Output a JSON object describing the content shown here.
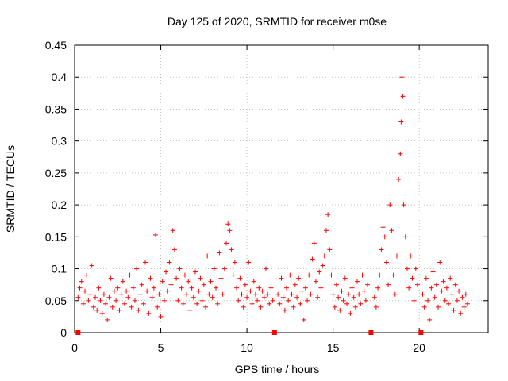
{
  "chart_data": {
    "type": "scatter",
    "title": "Day 125 of 2020, SRMTID for receiver m0se",
    "xlabel": "GPS time / hours",
    "ylabel": "SRMTID / TECUs",
    "xlim": [
      0,
      24
    ],
    "ylim": [
      0,
      0.45
    ],
    "xticks": [
      0,
      5,
      10,
      15,
      20
    ],
    "xtick_labels": [
      "0",
      "5",
      "10",
      "15",
      "20"
    ],
    "yticks": [
      0,
      0.05,
      0.1,
      0.15,
      0.2,
      0.25,
      0.3,
      0.35,
      0.4,
      0.45
    ],
    "ytick_labels": [
      "0",
      "0.05",
      "0.1",
      "0.15",
      "0.2",
      "0.25",
      "0.3",
      "0.35",
      "0.4",
      "0.45"
    ],
    "grid": true,
    "marker": "+",
    "color": "#ff0000",
    "series": [
      {
        "name": "SRMTID",
        "points": [
          [
            0.2,
            0.055
          ],
          [
            0.3,
            0.07
          ],
          [
            0.4,
            0.08
          ],
          [
            0.5,
            0.045
          ],
          [
            0.6,
            0.065
          ],
          [
            0.7,
            0.09
          ],
          [
            0.8,
            0.05
          ],
          [
            0.9,
            0.06
          ],
          [
            1.0,
            0.105
          ],
          [
            1.1,
            0.04
          ],
          [
            1.2,
            0.055
          ],
          [
            1.3,
            0.035
          ],
          [
            1.4,
            0.07
          ],
          [
            1.5,
            0.05
          ],
          [
            1.6,
            0.03
          ],
          [
            1.7,
            0.06
          ],
          [
            1.8,
            0.045
          ],
          [
            1.9,
            0.02
          ],
          [
            2.0,
            0.055
          ],
          [
            2.1,
            0.085
          ],
          [
            2.2,
            0.04
          ],
          [
            2.3,
            0.065
          ],
          [
            2.4,
            0.05
          ],
          [
            2.5,
            0.07
          ],
          [
            2.6,
            0.035
          ],
          [
            2.7,
            0.06
          ],
          [
            2.8,
            0.08
          ],
          [
            2.9,
            0.045
          ],
          [
            3.0,
            0.065
          ],
          [
            3.1,
            0.055
          ],
          [
            3.2,
            0.09
          ],
          [
            3.3,
            0.04
          ],
          [
            3.4,
            0.07
          ],
          [
            3.5,
            0.05
          ],
          [
            3.6,
            0.1
          ],
          [
            3.7,
            0.035
          ],
          [
            3.8,
            0.06
          ],
          [
            3.9,
            0.075
          ],
          [
            4.0,
            0.045
          ],
          [
            4.1,
            0.11
          ],
          [
            4.2,
            0.065
          ],
          [
            4.3,
            0.03
          ],
          [
            4.4,
            0.085
          ],
          [
            4.5,
            0.055
          ],
          [
            4.6,
            0.07
          ],
          [
            4.7,
            0.153
          ],
          [
            4.8,
            0.04
          ],
          [
            4.9,
            0.06
          ],
          [
            5.0,
            0.025
          ],
          [
            5.1,
            0.08
          ],
          [
            5.2,
            0.05
          ],
          [
            5.3,
            0.095
          ],
          [
            5.4,
            0.065
          ],
          [
            5.5,
            0.11
          ],
          [
            5.6,
            0.075
          ],
          [
            5.7,
            0.16
          ],
          [
            5.8,
            0.13
          ],
          [
            5.9,
            0.085
          ],
          [
            6.0,
            0.05
          ],
          [
            6.1,
            0.1
          ],
          [
            6.2,
            0.07
          ],
          [
            6.3,
            0.045
          ],
          [
            6.4,
            0.09
          ],
          [
            6.5,
            0.06
          ],
          [
            6.6,
            0.08
          ],
          [
            6.7,
            0.035
          ],
          [
            6.8,
            0.07
          ],
          [
            6.9,
            0.055
          ],
          [
            7.0,
            0.095
          ],
          [
            7.1,
            0.045
          ],
          [
            7.2,
            0.065
          ],
          [
            7.3,
            0.085
          ],
          [
            7.4,
            0.05
          ],
          [
            7.5,
            0.075
          ],
          [
            7.6,
            0.04
          ],
          [
            7.7,
            0.12
          ],
          [
            7.8,
            0.06
          ],
          [
            7.9,
            0.08
          ],
          [
            8.0,
            0.055
          ],
          [
            8.1,
            0.1
          ],
          [
            8.2,
            0.07
          ],
          [
            8.3,
            0.045
          ],
          [
            8.4,
            0.125
          ],
          [
            8.5,
            0.085
          ],
          [
            8.6,
            0.06
          ],
          [
            8.7,
            0.1
          ],
          [
            8.8,
            0.14
          ],
          [
            8.9,
            0.17
          ],
          [
            9.0,
            0.16
          ],
          [
            9.1,
            0.13
          ],
          [
            9.2,
            0.09
          ],
          [
            9.3,
            0.11
          ],
          [
            9.4,
            0.07
          ],
          [
            9.5,
            0.05
          ],
          [
            9.6,
            0.085
          ],
          [
            9.7,
            0.06
          ],
          [
            9.8,
            0.04
          ],
          [
            9.9,
            0.075
          ],
          [
            10.0,
            0.055
          ],
          [
            10.1,
            0.11
          ],
          [
            10.2,
            0.065
          ],
          [
            10.3,
            0.045
          ],
          [
            10.4,
            0.08
          ],
          [
            10.5,
            0.06
          ],
          [
            10.6,
            0.05
          ],
          [
            10.7,
            0.07
          ],
          [
            10.8,
            0.04
          ],
          [
            10.9,
            0.065
          ],
          [
            11.0,
            0.055
          ],
          [
            11.1,
            0.1
          ],
          [
            11.2,
            0.06
          ],
          [
            11.3,
            0.045
          ],
          [
            11.4,
            0.07
          ],
          [
            11.5,
            0.05
          ],
          [
            11.8,
            0.06
          ],
          [
            11.9,
            0.045
          ],
          [
            12.0,
            0.085
          ],
          [
            12.1,
            0.055
          ],
          [
            12.2,
            0.035
          ],
          [
            12.3,
            0.07
          ],
          [
            12.4,
            0.05
          ],
          [
            12.5,
            0.09
          ],
          [
            12.6,
            0.06
          ],
          [
            12.7,
            0.04
          ],
          [
            12.8,
            0.075
          ],
          [
            12.9,
            0.055
          ],
          [
            13.0,
            0.085
          ],
          [
            13.1,
            0.045
          ],
          [
            13.2,
            0.065
          ],
          [
            13.3,
            0.02
          ],
          [
            13.4,
            0.07
          ],
          [
            13.5,
            0.05
          ],
          [
            13.6,
            0.09
          ],
          [
            13.7,
            0.06
          ],
          [
            13.8,
            0.115
          ],
          [
            13.9,
            0.14
          ],
          [
            14.0,
            0.08
          ],
          [
            14.1,
            0.055
          ],
          [
            14.2,
            0.095
          ],
          [
            14.3,
            0.07
          ],
          [
            14.4,
            0.105
          ],
          [
            14.5,
            0.12
          ],
          [
            14.6,
            0.16
          ],
          [
            14.7,
            0.185
          ],
          [
            14.8,
            0.13
          ],
          [
            14.9,
            0.09
          ],
          [
            15.0,
            0.06
          ],
          [
            15.1,
            0.04
          ],
          [
            15.2,
            0.075
          ],
          [
            15.3,
            0.055
          ],
          [
            15.4,
            0.035
          ],
          [
            15.5,
            0.065
          ],
          [
            15.6,
            0.05
          ],
          [
            15.7,
            0.085
          ],
          [
            15.8,
            0.045
          ],
          [
            15.9,
            0.06
          ],
          [
            16.0,
            0.03
          ],
          [
            16.1,
            0.07
          ],
          [
            16.2,
            0.055
          ],
          [
            16.3,
            0.04
          ],
          [
            16.4,
            0.08
          ],
          [
            16.5,
            0.06
          ],
          [
            16.6,
            0.045
          ],
          [
            16.7,
            0.09
          ],
          [
            16.8,
            0.065
          ],
          [
            16.9,
            0.05
          ],
          [
            17.0,
            0.075
          ],
          [
            17.4,
            0.055
          ],
          [
            17.5,
            0.04
          ],
          [
            17.6,
            0.07
          ],
          [
            17.7,
            0.09
          ],
          [
            17.8,
            0.13
          ],
          [
            17.9,
            0.165
          ],
          [
            18.0,
            0.15
          ],
          [
            18.1,
            0.11
          ],
          [
            18.2,
            0.075
          ],
          [
            18.3,
            0.2
          ],
          [
            18.4,
            0.16
          ],
          [
            18.5,
            0.09
          ],
          [
            18.6,
            0.06
          ],
          [
            18.7,
            0.12
          ],
          [
            18.8,
            0.24
          ],
          [
            18.9,
            0.28
          ],
          [
            18.95,
            0.33
          ],
          [
            19.0,
            0.4
          ],
          [
            19.05,
            0.37
          ],
          [
            19.1,
            0.2
          ],
          [
            19.2,
            0.15
          ],
          [
            19.3,
            0.1
          ],
          [
            19.4,
            0.07
          ],
          [
            19.5,
            0.12
          ],
          [
            19.6,
            0.085
          ],
          [
            19.7,
            0.05
          ],
          [
            19.8,
            0.1
          ],
          [
            19.9,
            0.075
          ],
          [
            20.2,
            0.06
          ],
          [
            20.3,
            0.04
          ],
          [
            20.4,
            0.085
          ],
          [
            20.5,
            0.05
          ],
          [
            20.6,
            0.02
          ],
          [
            20.7,
            0.07
          ],
          [
            20.8,
            0.095
          ],
          [
            20.9,
            0.055
          ],
          [
            21.0,
            0.075
          ],
          [
            21.1,
            0.04
          ],
          [
            21.2,
            0.11
          ],
          [
            21.3,
            0.065
          ],
          [
            21.4,
            0.08
          ],
          [
            21.5,
            0.05
          ],
          [
            21.6,
            0.07
          ],
          [
            21.7,
            0.045
          ],
          [
            21.8,
            0.085
          ],
          [
            21.9,
            0.06
          ],
          [
            22.0,
            0.035
          ],
          [
            22.1,
            0.075
          ],
          [
            22.2,
            0.05
          ],
          [
            22.3,
            0.065
          ],
          [
            22.4,
            0.03
          ],
          [
            22.5,
            0.055
          ],
          [
            22.6,
            0.04
          ],
          [
            22.7,
            0.06
          ],
          [
            22.8,
            0.045
          ]
        ]
      }
    ],
    "baseline_markers": [
      0.2,
      11.6,
      17.2,
      20.1
    ]
  }
}
